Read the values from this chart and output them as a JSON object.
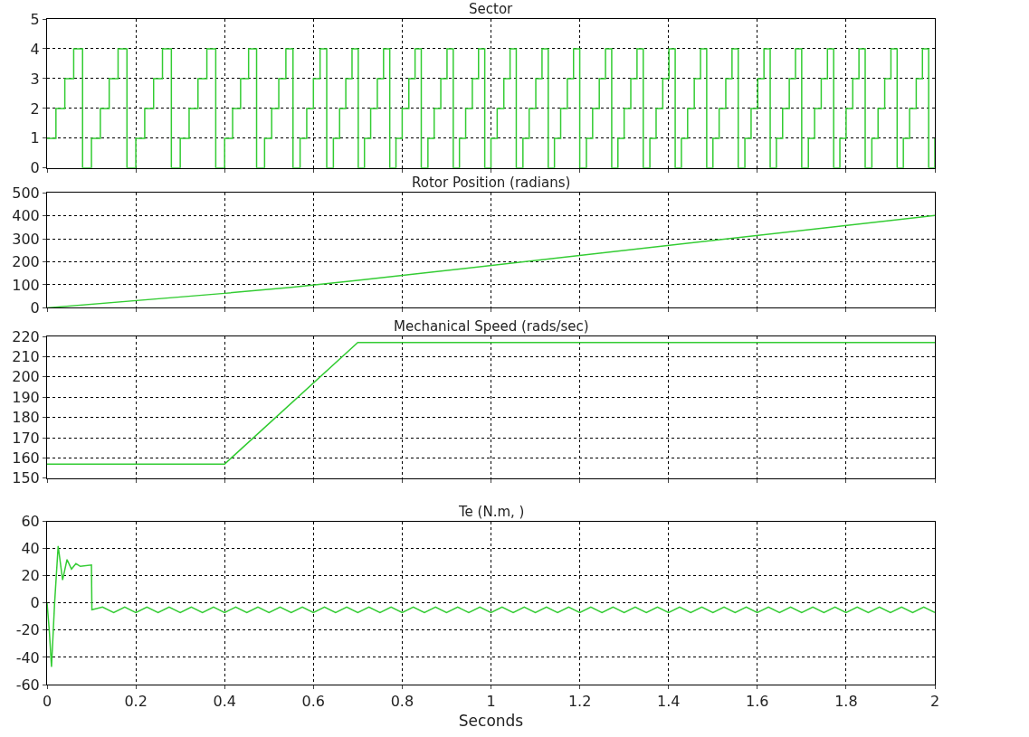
{
  "chart_data": [
    {
      "type": "step",
      "title": "Sector",
      "color": "#33cc33",
      "xlim": [
        0,
        2
      ],
      "xticks": [
        0,
        0.2,
        0.4,
        0.6,
        0.8,
        1,
        1.2,
        1.4,
        1.6,
        1.8,
        2
      ],
      "ylim": [
        0,
        5
      ],
      "yticks": [
        0,
        1,
        2,
        3,
        4,
        5
      ],
      "grid": true,
      "tick_labels": "y",
      "x": [
        0,
        0.02,
        0.04,
        0.06,
        0.08,
        0.1,
        0.12,
        0.14,
        0.16,
        0.18,
        0.2,
        0.22,
        0.24,
        0.26,
        0.28,
        0.3,
        0.32,
        0.34,
        0.36,
        0.38,
        0.4,
        0.418,
        0.436,
        0.454,
        0.472,
        0.49,
        0.506,
        0.522,
        0.538,
        0.554,
        0.57,
        0.585,
        0.6,
        0.615,
        0.63,
        0.645,
        0.659,
        0.673,
        0.687,
        0.701,
        0.715,
        0.729,
        0.744,
        0.758,
        0.772,
        0.786,
        0.8,
        0.815,
        0.829,
        0.843,
        0.858,
        0.872,
        0.887,
        0.901,
        0.915,
        0.929,
        0.943,
        0.958,
        0.972,
        0.986,
        1.0,
        1.014,
        1.029,
        1.043,
        1.057,
        1.072,
        1.086,
        1.101,
        1.115,
        1.129,
        1.143,
        1.157,
        1.172,
        1.186,
        1.2,
        1.215,
        1.229,
        1.244,
        1.258,
        1.272,
        1.286,
        1.3,
        1.315,
        1.329,
        1.343,
        1.358,
        1.372,
        1.387,
        1.401,
        1.415,
        1.429,
        1.443,
        1.458,
        1.472,
        1.486,
        1.5,
        1.514,
        1.529,
        1.543,
        1.557,
        1.572,
        1.586,
        1.601,
        1.615,
        1.629,
        1.643,
        1.657,
        1.672,
        1.686,
        1.7,
        1.715,
        1.729,
        1.744,
        1.758,
        1.772,
        1.786,
        1.8,
        1.815,
        1.829,
        1.843,
        1.858,
        1.872,
        1.887,
        1.901,
        1.915,
        1.929,
        1.943,
        1.958,
        1.972,
        1.986,
        2.0
      ],
      "values": [
        1,
        2,
        3,
        4,
        0,
        1,
        2,
        3,
        4,
        0,
        1,
        2,
        3,
        4,
        0,
        1,
        2,
        3,
        4,
        0,
        1,
        2,
        3,
        4,
        0,
        1,
        2,
        3,
        4,
        0,
        1,
        2,
        3,
        4,
        0,
        1,
        2,
        3,
        4,
        0,
        1,
        2,
        3,
        4,
        0,
        1,
        2,
        3,
        4,
        0,
        1,
        2,
        3,
        4,
        0,
        1,
        2,
        3,
        4,
        0,
        1,
        2,
        3,
        4,
        0,
        1,
        2,
        3,
        4,
        0,
        1,
        2,
        3,
        4,
        0,
        1,
        2,
        3,
        4,
        0,
        1,
        2,
        3,
        4,
        0,
        1,
        2,
        3,
        4,
        0,
        1,
        2,
        3,
        4,
        0,
        1,
        2,
        3,
        4,
        0,
        1,
        2,
        3,
        4,
        0,
        1,
        2,
        3,
        4,
        0,
        1,
        2,
        3,
        4,
        0,
        1,
        2,
        3,
        4,
        0,
        1,
        2,
        3,
        4,
        0,
        1,
        2,
        3,
        4,
        0,
        1
      ]
    },
    {
      "type": "line",
      "title": "Rotor Position (radians)",
      "color": "#33cc33",
      "xlim": [
        0,
        2
      ],
      "xticks": [
        0,
        0.2,
        0.4,
        0.6,
        0.8,
        1,
        1.2,
        1.4,
        1.6,
        1.8,
        2
      ],
      "ylim": [
        0,
        500
      ],
      "yticks": [
        0,
        100,
        200,
        300,
        400,
        500
      ],
      "grid": true,
      "tick_labels": "y",
      "x": [
        0,
        0.4,
        0.55,
        0.7,
        2.0
      ],
      "values": [
        0,
        63,
        89,
        119,
        401
      ]
    },
    {
      "type": "line",
      "title": "Mechanical Speed (rads/sec)",
      "color": "#33cc33",
      "xlim": [
        0,
        2
      ],
      "xticks": [
        0,
        0.2,
        0.4,
        0.6,
        0.8,
        1,
        1.2,
        1.4,
        1.6,
        1.8,
        2
      ],
      "ylim": [
        150,
        220
      ],
      "yticks": [
        150,
        160,
        170,
        180,
        190,
        200,
        210,
        220
      ],
      "grid": true,
      "tick_labels": "y",
      "x": [
        0,
        0.4,
        0.7,
        2.0
      ],
      "values": [
        157,
        157,
        217,
        217
      ]
    },
    {
      "type": "line",
      "title": "Te (N.m, )",
      "xlabel": "Seconds",
      "color": "#33cc33",
      "xlim": [
        0,
        2
      ],
      "xticks": [
        0,
        0.2,
        0.4,
        0.6,
        0.8,
        1,
        1.2,
        1.4,
        1.6,
        1.8,
        2
      ],
      "ylim": [
        -60,
        60
      ],
      "yticks": [
        -60,
        -40,
        -20,
        0,
        20,
        40,
        60
      ],
      "grid": true,
      "x": [
        0,
        0.005,
        0.01,
        0.017,
        0.025,
        0.035,
        0.045,
        0.055,
        0.065,
        0.075,
        0.1,
        0.101,
        0.125,
        0.15,
        0.175,
        0.2,
        0.225,
        0.25,
        0.275,
        0.3,
        0.325,
        0.35,
        0.375,
        0.4,
        0.425,
        0.45,
        0.475,
        0.5,
        0.525,
        0.55,
        0.575,
        0.6,
        0.625,
        0.65,
        0.675,
        0.7,
        0.725,
        0.75,
        0.775,
        0.8,
        0.825,
        0.85,
        0.875,
        0.9,
        0.925,
        0.95,
        0.975,
        1.0,
        1.025,
        1.05,
        1.075,
        1.1,
        1.125,
        1.15,
        1.175,
        1.2,
        1.225,
        1.25,
        1.275,
        1.3,
        1.325,
        1.35,
        1.375,
        1.4,
        1.425,
        1.45,
        1.475,
        1.5,
        1.525,
        1.55,
        1.575,
        1.6,
        1.625,
        1.65,
        1.675,
        1.7,
        1.725,
        1.75,
        1.775,
        1.8,
        1.825,
        1.85,
        1.875,
        1.9,
        1.925,
        1.95,
        1.975,
        2.0
      ],
      "values": [
        0,
        -20,
        -47,
        0,
        42,
        17,
        32,
        25,
        29,
        27,
        28,
        -5,
        -3,
        -7,
        -3,
        -7,
        -3,
        -7,
        -3,
        -7,
        -3,
        -7,
        -3,
        -7,
        -3,
        -7,
        -3,
        -7,
        -3,
        -7,
        -3,
        -7,
        -3,
        -7,
        -3,
        -7,
        -3,
        -7,
        -3,
        -7,
        -3,
        -7,
        -3,
        -7,
        -3,
        -7,
        -3,
        -7,
        -3,
        -7,
        -3,
        -7,
        -3,
        -7,
        -3,
        -7,
        -3,
        -7,
        -3,
        -7,
        -3,
        -7,
        -3,
        -7,
        -3,
        -7,
        -3,
        -7,
        -3,
        -7,
        -3,
        -7,
        -3,
        -7,
        -3,
        -7,
        -3,
        -7,
        -3,
        -7,
        -3,
        -7,
        -3,
        -7,
        -3,
        -7,
        -3,
        -7
      ]
    }
  ]
}
